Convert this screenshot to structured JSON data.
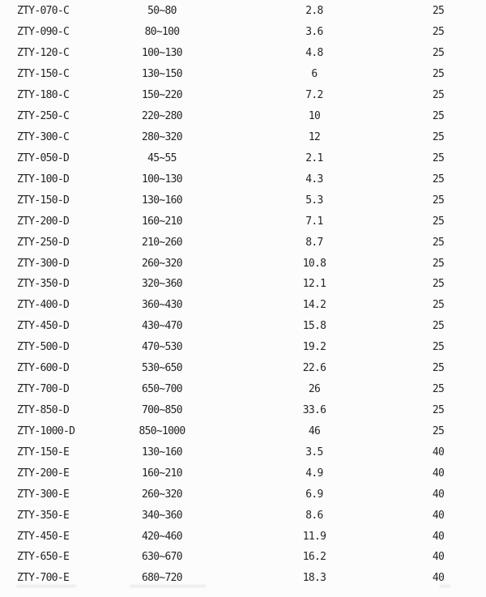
{
  "page": {
    "background_color": "#fcfcfc",
    "text_color": "#242424"
  },
  "table": {
    "rows": [
      [
        "ZTY-070-C",
        "50~80",
        "2.8",
        "25"
      ],
      [
        "ZTY-090-C",
        "80~100",
        "3.6",
        "25"
      ],
      [
        "ZTY-120-C",
        "100~130",
        "4.8",
        "25"
      ],
      [
        "ZTY-150-C",
        "130~150",
        "6",
        "25"
      ],
      [
        "ZTY-180-C",
        "150~220",
        "7.2",
        "25"
      ],
      [
        "ZTY-250-C",
        "220~280",
        "10",
        "25"
      ],
      [
        "ZTY-300-C",
        "280~320",
        "12",
        "25"
      ],
      [
        "ZTY-050-D",
        "45~55",
        "2.1",
        "25"
      ],
      [
        "ZTY-100-D",
        "100~130",
        "4.3",
        "25"
      ],
      [
        "ZTY-150-D",
        "130~160",
        "5.3",
        "25"
      ],
      [
        "ZTY-200-D",
        "160~210",
        "7.1",
        "25"
      ],
      [
        "ZTY-250-D",
        "210~260",
        "8.7",
        "25"
      ],
      [
        "ZTY-300-D",
        "260~320",
        "10.8",
        "25"
      ],
      [
        "ZTY-350-D",
        "320~360",
        "12.1",
        "25"
      ],
      [
        "ZTY-400-D",
        "360~430",
        "14.2",
        "25"
      ],
      [
        "ZTY-450-D",
        "430~470",
        "15.8",
        "25"
      ],
      [
        "ZTY-500-D",
        "470~530",
        "19.2",
        "25"
      ],
      [
        "ZTY-600-D",
        "530~650",
        "22.6",
        "25"
      ],
      [
        "ZTY-700-D",
        "650~700",
        "26",
        "25"
      ],
      [
        "ZTY-850-D",
        "700~850",
        "33.6",
        "25"
      ],
      [
        "ZTY-1000-D",
        "850~1000",
        "46",
        "25"
      ],
      [
        "ZTY-150-E",
        "130~160",
        "3.5",
        "40"
      ],
      [
        "ZTY-200-E",
        "160~210",
        "4.9",
        "40"
      ],
      [
        "ZTY-300-E",
        "260~320",
        "6.9",
        "40"
      ],
      [
        "ZTY-350-E",
        "340~360",
        "8.6",
        "40"
      ],
      [
        "ZTY-450-E",
        "420~460",
        "11.9",
        "40"
      ],
      [
        "ZTY-650-E",
        "630~670",
        "16.2",
        "40"
      ],
      [
        "ZTY-700-E",
        "680~720",
        "18.3",
        "40"
      ]
    ]
  }
}
